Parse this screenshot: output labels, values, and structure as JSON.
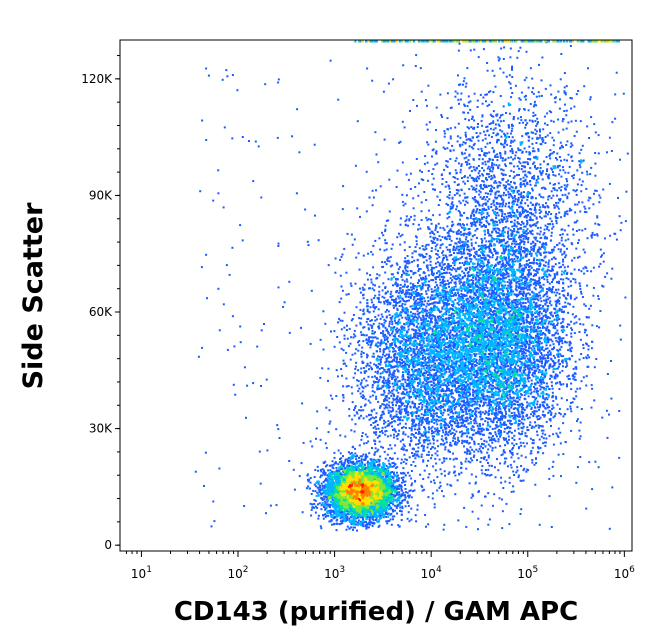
{
  "chart_data": {
    "type": "scatter",
    "style": "flow-cytometry density pseudocolor",
    "xlabel": "CD143 (purified) / GAM APC",
    "ylabel": "Side Scatter",
    "x_scale": "log",
    "xlim": [
      6,
      1200000
    ],
    "ylim": [
      -1500,
      130000
    ],
    "x_ticks": [
      {
        "base": "10",
        "exp": "1",
        "value": 10
      },
      {
        "base": "10",
        "exp": "2",
        "value": 100
      },
      {
        "base": "10",
        "exp": "3",
        "value": 1000
      },
      {
        "base": "10",
        "exp": "4",
        "value": 10000
      },
      {
        "base": "10",
        "exp": "5",
        "value": 100000
      },
      {
        "base": "10",
        "exp": "6",
        "value": 1000000
      }
    ],
    "y_ticks": [
      {
        "label": "0",
        "value": 0
      },
      {
        "label": "30K",
        "value": 30000
      },
      {
        "label": "60K",
        "value": 60000
      },
      {
        "label": "90K",
        "value": 90000
      },
      {
        "label": "120K",
        "value": 120000
      }
    ],
    "populations": [
      {
        "center_x": 1800,
        "center_y": 14000,
        "spread_log_x": 0.18,
        "spread_y": 3500,
        "density": "high"
      },
      {
        "center_x": 50000,
        "center_y": 52000,
        "spread_log_x": 0.35,
        "spread_y": 14000,
        "density": "high"
      },
      {
        "center_x": 8000,
        "center_y": 48000,
        "spread_log_x": 0.35,
        "spread_y": 14000,
        "density": "medium"
      },
      {
        "center_x": 60000,
        "center_y": 85000,
        "spread_log_x": 0.45,
        "spread_y": 18000,
        "density": "low"
      }
    ],
    "density_colors": [
      "#1010d0",
      "#1a5cff",
      "#00b4ff",
      "#00e0a0",
      "#7de83a",
      "#ffe000",
      "#ff8000",
      "#ff1a00"
    ],
    "grid": false,
    "legend": "none"
  }
}
